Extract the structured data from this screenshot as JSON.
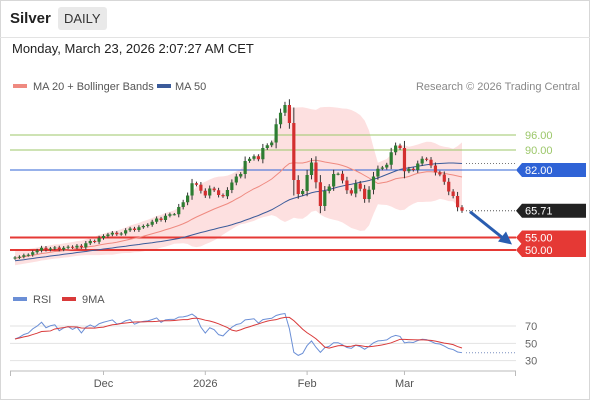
{
  "header": {
    "title": "Silver",
    "interval": "DAILY",
    "date": "Monday, March 23, 2026 2:07:27 AM CET"
  },
  "legend": {
    "ma20": "MA 20 + Bollinger Bands",
    "ma50": "MA 50",
    "credit": "Research © 2026 Trading Central"
  },
  "rsi_legend": {
    "rsi": "RSI",
    "ma": "9MA"
  },
  "colors": {
    "up": "#2e7d32",
    "down": "#d32f2f",
    "ma20": "#ef8a80",
    "ma50": "#3b5b9a",
    "band_fill": "#fde0e0",
    "target_green": "#9cc76a",
    "blue_level": "#2f63d6",
    "red_level": "#e53935",
    "arrow": "#2a5db0",
    "rsi": "#6b8fd6",
    "rsi_ma": "#d93a3a"
  },
  "chart_data": {
    "type": "candlestick",
    "x_labels": [
      "Dec",
      "2026",
      "Feb",
      "Mar"
    ],
    "ylim": [
      38,
      110
    ],
    "current_price": 65.71,
    "levels": [
      {
        "value": 96.0,
        "label": "96.00",
        "kind": "target"
      },
      {
        "value": 90.0,
        "label": "90.00",
        "kind": "target"
      },
      {
        "value": 82.0,
        "label": "82.00",
        "kind": "pivot"
      },
      {
        "value": 55.0,
        "label": "55.00",
        "kind": "support"
      },
      {
        "value": 50.0,
        "label": "50.00",
        "kind": "support"
      }
    ],
    "closes": [
      47.0,
      47.3,
      47.9,
      48.1,
      49.1,
      49.8,
      50.9,
      50.1,
      50.6,
      51.0,
      50.2,
      50.9,
      51.3,
      51.0,
      51.7,
      51.1,
      52.7,
      53.6,
      53.3,
      54.8,
      55.6,
      56.2,
      56.9,
      56.3,
      56.6,
      57.9,
      58.6,
      58.0,
      59.1,
      59.6,
      60.1,
      61.3,
      62.6,
      62.0,
      63.7,
      64.3,
      64.3,
      67.2,
      69.1,
      71.8,
      76.7,
      76.1,
      73.7,
      71.8,
      74.6,
      73.9,
      72.0,
      71.5,
      74.0,
      77.0,
      79.4,
      80.4,
      85.6,
      86.5,
      87.5,
      86.3,
      90.8,
      91.9,
      93.0,
      100.3,
      104.9,
      108.0,
      100.8,
      78.0,
      72.4,
      73.6,
      80.0,
      85.0,
      77.1,
      67.6,
      73.6,
      75.4,
      80.4,
      80.5,
      77.8,
      73.9,
      72.6,
      76.6,
      74.5,
      70.4,
      74.1,
      79.4,
      82.5,
      83.0,
      84.1,
      89.1,
      91.8,
      90.8,
      81.5,
      82.5,
      82.0,
      84.6,
      86.5,
      86.1,
      83.8,
      81.0,
      80.2,
      77.3,
      73.4,
      71.6,
      67.1,
      65.71
    ],
    "ma20": [
      46.7,
      47.0,
      47.3,
      47.6,
      47.9,
      48.2,
      48.6,
      48.8,
      49.1,
      49.4,
      49.5,
      49.8,
      50.0,
      50.3,
      50.6,
      50.8,
      51.1,
      51.4,
      51.6,
      52.0,
      52.3,
      52.6,
      52.8,
      53.1,
      53.5,
      53.9,
      54.3,
      54.7,
      55.0,
      55.5,
      56.0,
      56.5,
      57.0,
      57.5,
      58.1,
      58.6,
      59.2,
      59.8,
      60.5,
      61.3,
      62.3,
      63.2,
      64.0,
      64.8,
      65.6,
      66.4,
      67.1,
      67.8,
      68.5,
      69.4,
      70.4,
      71.3,
      72.5,
      73.5,
      74.5,
      75.3,
      76.3,
      77.3,
      78.4,
      79.9,
      81.4,
      83.2,
      84.6,
      84.9,
      84.8,
      84.8,
      85.2,
      85.8,
      85.9,
      85.6,
      85.2,
      84.9,
      84.6,
      84.3,
      83.8,
      83.2,
      82.4,
      81.7,
      80.8,
      79.8,
      78.8,
      77.7,
      76.6,
      76.9,
      77.2,
      77.8,
      78.5,
      78.8,
      79.0,
      79.4,
      80.1,
      80.7,
      81.0,
      81.3,
      81.3,
      81.2,
      81.1,
      80.7,
      80.3,
      80.0,
      79.6,
      79.2
    ],
    "ma50": [
      45.7,
      45.9,
      46.1,
      46.4,
      46.6,
      46.9,
      47.1,
      47.3,
      47.6,
      47.8,
      48.0,
      48.3,
      48.5,
      48.7,
      49.0,
      49.2,
      49.4,
      49.7,
      49.9,
      50.1,
      50.4,
      50.6,
      50.8,
      51.1,
      51.3,
      51.5,
      51.8,
      52.0,
      52.2,
      52.5,
      52.7,
      52.9,
      53.2,
      53.4,
      53.7,
      54.0,
      54.3,
      54.6,
      55.0,
      55.5,
      56.0,
      56.5,
      57.0,
      57.4,
      57.9,
      58.3,
      58.8,
      59.2,
      59.6,
      60.1,
      60.7,
      61.2,
      61.9,
      62.5,
      63.2,
      63.8,
      64.6,
      65.3,
      66.1,
      67.1,
      68.1,
      69.2,
      70.1,
      70.7,
      71.2,
      71.7,
      72.3,
      72.9,
      73.3,
      73.5,
      73.8,
      74.2,
      74.7,
      75.2,
      75.6,
      76.0,
      76.3,
      76.7,
      77.1,
      77.4,
      77.8,
      78.3,
      78.8,
      79.5,
      80.2,
      80.9,
      81.6,
      82.2,
      82.6,
      82.9,
      83.2,
      83.5,
      83.8,
      84.1,
      84.3,
      84.5,
      84.6,
      84.7,
      84.8,
      84.8,
      84.7,
      84.6
    ],
    "rsi_panel": {
      "ylim": [
        25,
        85
      ],
      "ticks": [
        70,
        50,
        30
      ],
      "rsi": [
        55.0,
        57.1,
        60.2,
        61.8,
        66.7,
        69.9,
        74.3,
        68.0,
        70.3,
        71.4,
        64.6,
        67.8,
        69.4,
        66.1,
        68.8,
        62.0,
        68.5,
        71.2,
        68.8,
        72.6,
        74.3,
        75.7,
        77.0,
        72.3,
        73.2,
        76.1,
        77.4,
        72.1,
        74.2,
        75.3,
        75.9,
        77.5,
        79.3,
        74.2,
        77.1,
        77.6,
        77.6,
        80.3,
        80.5,
        81.7,
        83.8,
        80.2,
        68.7,
        61.9,
        68.0,
        65.8,
        60.0,
        58.6,
        63.8,
        68.6,
        71.7,
        72.8,
        77.1,
        77.7,
        78.4,
        73.3,
        77.4,
        78.2,
        78.9,
        82.1,
        83.5,
        84.4,
        66.8,
        39.6,
        36.1,
        38.4,
        47.4,
        52.8,
        45.5,
        39.6,
        45.0,
        46.6,
        50.7,
        50.7,
        48.3,
        45.2,
        44.2,
        47.9,
        46.2,
        43.2,
        46.5,
        50.6,
        52.8,
        53.2,
        54.0,
        57.4,
        59.1,
        58.0,
        50.6,
        51.4,
        51.0,
        53.2,
        54.7,
        54.3,
        52.2,
        49.8,
        49.2,
        46.8,
        44.0,
        42.8,
        40.0,
        39.2
      ],
      "ma9": [
        55.0,
        56.1,
        57.4,
        58.5,
        60.1,
        61.7,
        63.6,
        63.9,
        64.3,
        66.6,
        67.4,
        68.2,
        69.1,
        69.0,
        68.9,
        67.7,
        67.6,
        67.7,
        67.5,
        68.3,
        68.7,
        70.1,
        71.4,
        71.9,
        72.9,
        73.5,
        74.0,
        74.6,
        74.7,
        74.8,
        75.0,
        75.1,
        75.4,
        75.9,
        76.0,
        76.0,
        76.4,
        76.9,
        77.4,
        77.4,
        78.7,
        79.1,
        78.1,
        76.7,
        75.8,
        74.3,
        72.5,
        70.4,
        68.2,
        65.2,
        64.1,
        65.7,
        67.7,
        69.1,
        70.9,
        72.4,
        74.1,
        75.6,
        76.7,
        77.3,
        78.9,
        79.9,
        79.9,
        76.2,
        71.3,
        66.3,
        62.2,
        58.9,
        55.3,
        50.7,
        45.6,
        44.5,
        45.9,
        47.2,
        47.5,
        46.4,
        46.7,
        47.9,
        47.3,
        46.5,
        46.1,
        46.6,
        47.3,
        48.2,
        49.3,
        50.6,
        52.6,
        54.6,
        54.5,
        54.3,
        54.1,
        54.0,
        54.1,
        53.7,
        53.4,
        52.6,
        51.4,
        50.3,
        49.5,
        48.5,
        46.3,
        44.6
      ]
    }
  }
}
